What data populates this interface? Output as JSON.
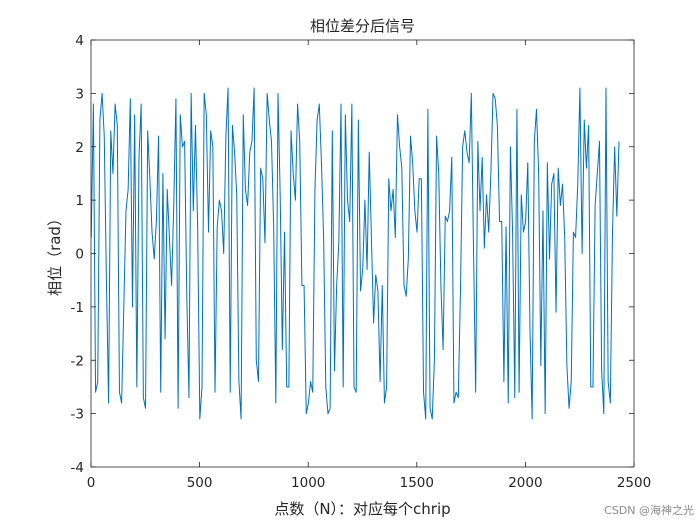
{
  "chart_data": {
    "type": "line",
    "title": "相位差分后信号",
    "xlabel": "点数（N）：对应每个chrip",
    "ylabel": "相位（rad）",
    "xlim": [
      0,
      2500
    ],
    "ylim": [
      -4,
      4
    ],
    "x_ticks": [
      "0",
      "500",
      "1000",
      "1500",
      "2000",
      "2500"
    ],
    "y_ticks": [
      "4",
      "3",
      "2",
      "1",
      "0",
      "-1",
      "-2",
      "-3",
      "-4"
    ],
    "grid": false,
    "line_color": "#0072BD",
    "series": [
      {
        "x_start": 1,
        "x_step": 10,
        "values": [
          0.3,
          2.8,
          -2.6,
          -2.4,
          2.5,
          3.0,
          2.2,
          -0.5,
          -2.8,
          2.3,
          1.5,
          2.8,
          2.4,
          -2.6,
          -2.8,
          -1.0,
          0.8,
          1.2,
          2.9,
          -1.0,
          2.6,
          -2.5,
          1.8,
          2.8,
          -2.7,
          -2.9,
          2.3,
          1.4,
          0.4,
          -0.1,
          0.6,
          2.2,
          -2.6,
          1.5,
          -1.6,
          1.2,
          0.3,
          -0.6,
          0.9,
          2.9,
          -2.9,
          2.6,
          2.0,
          2.1,
          -0.8,
          -2.7,
          3.0,
          0.8,
          2.4,
          0.5,
          -3.1,
          -2.5,
          3.0,
          2.6,
          0.4,
          2.3,
          2.0,
          -2.6,
          0.5,
          1.0,
          0.8,
          0.0,
          2.2,
          3.1,
          -2.6,
          2.4,
          1.9,
          1.1,
          -2.4,
          -3.1,
          2.6,
          1.2,
          0.9,
          1.9,
          2.1,
          3.1,
          -2.0,
          -2.4,
          1.6,
          1.4,
          0.2,
          3.0,
          2.5,
          2.1,
          0.5,
          -2.8,
          3.0,
          1.1,
          -1.8,
          0.4,
          -2.5,
          -2.5,
          2.3,
          1.5,
          1.0,
          2.8,
          2.1,
          -0.6,
          -0.6,
          -3.0,
          -2.8,
          -2.4,
          -2.6,
          1.2,
          2.5,
          2.8,
          1.7,
          0.3,
          -2.5,
          -3.0,
          -2.9,
          2.3,
          -2.2,
          -0.6,
          0.2,
          2.8,
          -2.5,
          2.6,
          1.0,
          0.6,
          2.8,
          -2.5,
          -2.6,
          2.5,
          -0.7,
          -0.3,
          1.0,
          -0.3,
          1.9,
          0.3,
          -1.3,
          -0.4,
          -0.7,
          -2.4,
          -0.6,
          -2.8,
          -2.5,
          1.4,
          0.8,
          1.2,
          0.3,
          2.6,
          2.0,
          1.6,
          -0.6,
          -0.8,
          -0.1,
          2.2,
          1.7,
          0.8,
          0.4,
          1.4,
          1.4,
          -2.6,
          -3.1,
          2.7,
          -2.9,
          -3.1,
          -2.0,
          2.2,
          1.5,
          -0.6,
          -1.8,
          0.7,
          0.6,
          0.8,
          1.8,
          -2.8,
          -2.6,
          -2.7,
          -0.7,
          2.0,
          2.3,
          1.9,
          1.7,
          3.0,
          0.1,
          -2.6,
          2.1,
          0.8,
          1.8,
          0.1,
          1.1,
          0.4,
          1.5,
          3.0,
          2.9,
          2.4,
          0.6,
          0.6,
          -2.4,
          0.5,
          -2.8,
          2.0,
          0.4,
          -2.7,
          2.7,
          -2.6,
          1.1,
          0.4,
          0.6,
          1.7,
          -1.4,
          -3.1,
          2.1,
          2.7,
          1.5,
          -2.1,
          0.8,
          -3.0,
          1.7,
          -0.1,
          1.3,
          1.5,
          -1.1,
          1.6,
          0.9,
          1.3,
          0.3,
          -2.1,
          -2.9,
          -2.4,
          0.4,
          0.3,
          1.3,
          3.1,
          0.0,
          2.5,
          1.6,
          2.4,
          -2.5,
          -2.5,
          0.9,
          1.5,
          2.1,
          -2.2,
          -3.0,
          3.1,
          -2.4,
          -2.8,
          0.4,
          2.0,
          0.7,
          2.1
        ]
      }
    ]
  },
  "watermark": "CSDN @海神之光"
}
